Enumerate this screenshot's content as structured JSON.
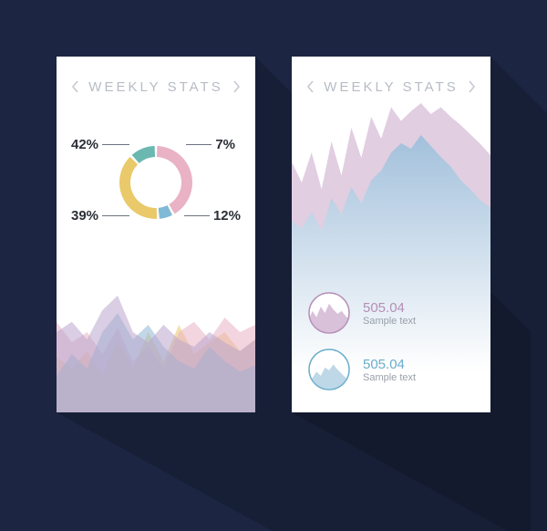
{
  "background_color": "#1c2541",
  "card_bg": "#ffffff",
  "shadow_color": "rgba(0,0,0,0.15)",
  "header": {
    "title": "WEEKLY STATS",
    "title_color": "#b7bcc4",
    "title_fontsize": 15,
    "letter_spacing": 3,
    "chevron_color": "#c5cad1"
  },
  "left_card": {
    "donut": {
      "type": "donut",
      "outer_r": 40,
      "inner_r": 28,
      "segments": [
        {
          "label": "42%",
          "value": 42,
          "color": "#e9b2c5",
          "label_pos": "top-left"
        },
        {
          "label": "7%",
          "value": 7,
          "color": "#7fb9d6",
          "label_pos": "top-right"
        },
        {
          "label": "39%",
          "value": 39,
          "color": "#eac96a",
          "label_pos": "bottom-left"
        },
        {
          "label": "12%",
          "value": 12,
          "color": "#6bb8b0",
          "label_pos": "bottom-right"
        }
      ],
      "gap_deg": 4,
      "label_color": "#2b2f36",
      "line_color": "#7a7f88"
    },
    "area_chart": {
      "type": "area",
      "height": 160,
      "background": "#ffffff",
      "series": [
        {
          "color": "#eac96a",
          "opacity": 0.55,
          "points": [
            0.38,
            0.3,
            0.42,
            0.25,
            0.5,
            0.3,
            0.55,
            0.35,
            0.6,
            0.4,
            0.48,
            0.55,
            0.42,
            0.5
          ]
        },
        {
          "color": "#e9b2c5",
          "opacity": 0.55,
          "points": [
            0.62,
            0.48,
            0.55,
            0.4,
            0.58,
            0.35,
            0.45,
            0.3,
            0.55,
            0.62,
            0.5,
            0.65,
            0.55,
            0.6
          ]
        },
        {
          "color": "#8fb6d6",
          "opacity": 0.55,
          "points": [
            0.25,
            0.4,
            0.3,
            0.55,
            0.68,
            0.5,
            0.6,
            0.45,
            0.35,
            0.3,
            0.45,
            0.35,
            0.28,
            0.32
          ]
        },
        {
          "color": "#b9a6cc",
          "opacity": 0.55,
          "points": [
            0.55,
            0.62,
            0.5,
            0.7,
            0.8,
            0.55,
            0.48,
            0.6,
            0.5,
            0.45,
            0.55,
            0.48,
            0.42,
            0.5
          ]
        }
      ]
    }
  },
  "right_card": {
    "mountain": {
      "type": "area",
      "back": {
        "color_top": "#c9a6c9",
        "color_mid": "#a2c0db",
        "points": [
          0.55,
          0.4,
          0.62,
          0.35,
          0.7,
          0.45,
          0.8,
          0.58,
          0.88,
          0.72,
          0.95,
          0.85,
          0.92,
          0.98,
          0.9,
          0.95,
          0.88,
          0.82,
          0.75,
          0.68,
          0.6
        ]
      },
      "front": {
        "gradient_from": "#a2c0db",
        "gradient_to": "#ffffff",
        "points": [
          0.25,
          0.2,
          0.32,
          0.18,
          0.42,
          0.3,
          0.5,
          0.38,
          0.55,
          0.62,
          0.75,
          0.82,
          0.78,
          0.88,
          0.8,
          0.72,
          0.65,
          0.55,
          0.48,
          0.4,
          0.35
        ]
      }
    },
    "items": [
      {
        "value": "505.04",
        "sub": "Sample text",
        "value_color": "#b58fb8",
        "thumb_stroke": "#b58fb8",
        "thumb_series": {
          "color": "#c9a6c9",
          "points": [
            0.3,
            0.55,
            0.4,
            0.65,
            0.5,
            0.72,
            0.58,
            0.48,
            0.55,
            0.42,
            0.35
          ]
        }
      },
      {
        "value": "505.04",
        "sub": "Sample text",
        "value_color": "#6aaeca",
        "thumb_stroke": "#6aaeca",
        "thumb_series": {
          "color": "#a2c8dd",
          "points": [
            0.2,
            0.3,
            0.45,
            0.35,
            0.55,
            0.48,
            0.62,
            0.5,
            0.4,
            0.3,
            0.25
          ]
        }
      }
    ]
  }
}
